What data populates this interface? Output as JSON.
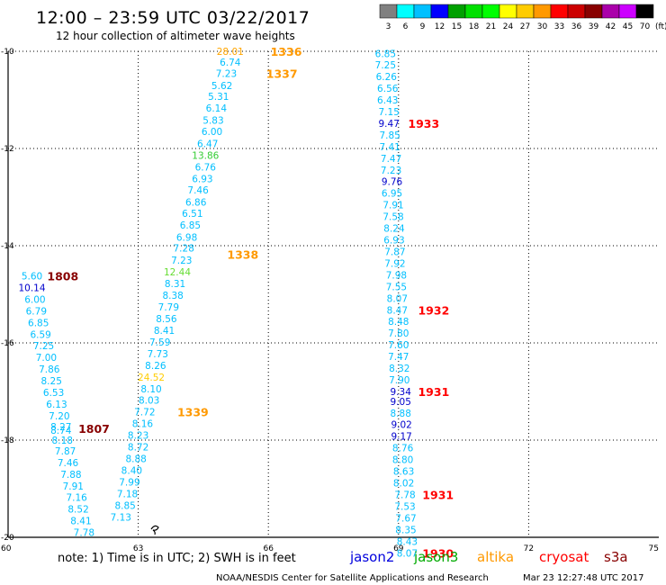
{
  "title": "12:00 – 23:59 UTC 03/22/2017",
  "subtitle": "12 hour collection of altimeter wave heights",
  "color_scale": {
    "labels": [
      "3",
      "6",
      "9",
      "12",
      "15",
      "18",
      "21",
      "24",
      "27",
      "30",
      "33",
      "36",
      "39",
      "42",
      "45",
      "70"
    ],
    "unit": "(ft)",
    "colors": [
      "#808080",
      "#00ffff",
      "#00c0ff",
      "#0000ff",
      "#00a000",
      "#00e000",
      "#00ff00",
      "#ffff00",
      "#ffcc00",
      "#ff9900",
      "#ff0000",
      "#cc0000",
      "#880000",
      "#aa00aa",
      "#cc00ff",
      "#000000"
    ]
  },
  "note": "note:  1) Time is in UTC;  2) SWH is in feet",
  "legend": [
    {
      "label": "jason2",
      "color": "#0000dd"
    },
    {
      "label": "jason3",
      "color": "#00aa00"
    },
    {
      "label": "altika",
      "color": "#ff9900"
    },
    {
      "label": "cryosat",
      "color": "#ff0000"
    },
    {
      "label": "s3a",
      "color": "#880000"
    }
  ],
  "footer_left": "NOAA/NESDIS Center for Satellite Applications and Research",
  "footer_right": "Mar 23 12:27:48 UTC 2017",
  "chart_data": {
    "type": "scatter",
    "xlim": [
      60,
      75
    ],
    "ylim": [
      -20,
      -10
    ],
    "x_ticks": [
      "60",
      "63",
      "66",
      "69",
      "72",
      "75"
    ],
    "y_ticks": [
      "-10",
      "-12",
      "-14",
      "-16",
      "-18",
      "-20"
    ],
    "x_grid": [
      63,
      66,
      69,
      72
    ],
    "y_grid": [
      -10,
      -12,
      -14,
      -16,
      -18
    ],
    "points": [
      {
        "x": 65.12,
        "y": -10.0,
        "label": "28.01",
        "color": "#ffa500"
      },
      {
        "x": 65.12,
        "y": -10.22,
        "label": "6.74",
        "color": "#00bfff"
      },
      {
        "x": 65.03,
        "y": -10.45,
        "label": "7.23",
        "color": "#00bfff"
      },
      {
        "x": 64.93,
        "y": -10.7,
        "label": "5.62",
        "color": "#00bfff"
      },
      {
        "x": 64.85,
        "y": -10.93,
        "label": "5.31",
        "color": "#00bfff"
      },
      {
        "x": 64.8,
        "y": -11.17,
        "label": "6.14",
        "color": "#00bfff"
      },
      {
        "x": 64.73,
        "y": -11.42,
        "label": "5.83",
        "color": "#00bfff"
      },
      {
        "x": 64.7,
        "y": -11.65,
        "label": "6.00",
        "color": "#00bfff"
      },
      {
        "x": 64.6,
        "y": -11.9,
        "label": "6.47",
        "color": "#00bfff"
      },
      {
        "x": 64.55,
        "y": -12.14,
        "label": "13.86",
        "color": "#33cc33"
      },
      {
        "x": 64.55,
        "y": -12.38,
        "label": "6.76",
        "color": "#00bfff"
      },
      {
        "x": 64.48,
        "y": -12.62,
        "label": "6.93",
        "color": "#00bfff"
      },
      {
        "x": 64.38,
        "y": -12.85,
        "label": "7.46",
        "color": "#00bfff"
      },
      {
        "x": 64.33,
        "y": -13.1,
        "label": "6.86",
        "color": "#00bfff"
      },
      {
        "x": 64.25,
        "y": -13.33,
        "label": "6.51",
        "color": "#00bfff"
      },
      {
        "x": 64.2,
        "y": -13.57,
        "label": "6.85",
        "color": "#00bfff"
      },
      {
        "x": 64.12,
        "y": -13.82,
        "label": "6.98",
        "color": "#00bfff"
      },
      {
        "x": 64.05,
        "y": -14.05,
        "label": "7.28",
        "color": "#00bfff"
      },
      {
        "x": 64.0,
        "y": -14.3,
        "label": "7.23",
        "color": "#00bfff"
      },
      {
        "x": 63.9,
        "y": -14.54,
        "label": "12.44",
        "color": "#66dd33"
      },
      {
        "x": 63.85,
        "y": -14.78,
        "label": "8.31",
        "color": "#00bfff"
      },
      {
        "x": 63.8,
        "y": -15.02,
        "label": "8.38",
        "color": "#00bfff"
      },
      {
        "x": 63.7,
        "y": -15.26,
        "label": "7.79",
        "color": "#00bfff"
      },
      {
        "x": 63.65,
        "y": -15.5,
        "label": "8.56",
        "color": "#00bfff"
      },
      {
        "x": 63.6,
        "y": -15.74,
        "label": "8.41",
        "color": "#00bfff"
      },
      {
        "x": 63.5,
        "y": -15.98,
        "label": "7.59",
        "color": "#00bfff"
      },
      {
        "x": 63.45,
        "y": -16.22,
        "label": "7.73",
        "color": "#00bfff"
      },
      {
        "x": 63.4,
        "y": -16.46,
        "label": "8.26",
        "color": "#00bfff"
      },
      {
        "x": 63.3,
        "y": -16.7,
        "label": "24.52",
        "color": "#ffcc00"
      },
      {
        "x": 63.3,
        "y": -16.94,
        "label": "8.10",
        "color": "#00bfff"
      },
      {
        "x": 63.25,
        "y": -17.18,
        "label": "8.03",
        "color": "#00bfff"
      },
      {
        "x": 63.15,
        "y": -17.42,
        "label": "7.72",
        "color": "#00bfff"
      },
      {
        "x": 63.1,
        "y": -17.66,
        "label": "8.16",
        "color": "#00bfff"
      },
      {
        "x": 63.0,
        "y": -17.9,
        "label": "8.23",
        "color": "#00bfff"
      },
      {
        "x": 63.0,
        "y": -18.14,
        "label": "8.72",
        "color": "#00bfff"
      },
      {
        "x": 62.95,
        "y": -18.38,
        "label": "8.88",
        "color": "#00bfff"
      },
      {
        "x": 62.85,
        "y": -18.62,
        "label": "8.40",
        "color": "#00bfff"
      },
      {
        "x": 62.8,
        "y": -18.86,
        "label": "7.99",
        "color": "#00bfff"
      },
      {
        "x": 62.75,
        "y": -19.1,
        "label": "7.18",
        "color": "#00bfff"
      },
      {
        "x": 62.7,
        "y": -19.34,
        "label": "8.85",
        "color": "#00bfff"
      },
      {
        "x": 62.6,
        "y": -19.58,
        "label": "7.13",
        "color": "#00bfff"
      },
      {
        "x": 60.55,
        "y": -14.62,
        "label": "5.60",
        "color": "#00bfff"
      },
      {
        "x": 60.55,
        "y": -14.86,
        "label": "10.14",
        "color": "#0000cc"
      },
      {
        "x": 60.62,
        "y": -15.1,
        "label": "6.00",
        "color": "#00bfff"
      },
      {
        "x": 60.65,
        "y": -15.34,
        "label": "6.79",
        "color": "#00bfff"
      },
      {
        "x": 60.7,
        "y": -15.58,
        "label": "6.85",
        "color": "#00bfff"
      },
      {
        "x": 60.75,
        "y": -15.82,
        "label": "6.59",
        "color": "#00bfff"
      },
      {
        "x": 60.82,
        "y": -16.06,
        "label": "7.25",
        "color": "#00bfff"
      },
      {
        "x": 60.88,
        "y": -16.3,
        "label": "7.00",
        "color": "#00bfff"
      },
      {
        "x": 60.95,
        "y": -16.54,
        "label": "7.86",
        "color": "#00bfff"
      },
      {
        "x": 61.0,
        "y": -16.78,
        "label": "8.25",
        "color": "#00bfff"
      },
      {
        "x": 61.05,
        "y": -17.02,
        "label": "6.53",
        "color": "#00bfff"
      },
      {
        "x": 61.12,
        "y": -17.26,
        "label": "6.13",
        "color": "#00bfff"
      },
      {
        "x": 61.18,
        "y": -17.5,
        "label": "7.20",
        "color": "#00bfff"
      },
      {
        "x": 61.22,
        "y": -17.72,
        "label": "8.27",
        "color": "#00bfff"
      },
      {
        "x": 61.22,
        "y": -17.8,
        "label": "8.74",
        "color": "#00bfff"
      },
      {
        "x": 61.25,
        "y": -18.0,
        "label": "8.18",
        "color": "#00bfff"
      },
      {
        "x": 61.32,
        "y": -18.22,
        "label": "7.87",
        "color": "#00bfff"
      },
      {
        "x": 61.38,
        "y": -18.46,
        "label": "7.46",
        "color": "#00bfff"
      },
      {
        "x": 61.45,
        "y": -18.7,
        "label": "7.88",
        "color": "#00bfff"
      },
      {
        "x": 61.5,
        "y": -18.94,
        "label": "7.91",
        "color": "#00bfff"
      },
      {
        "x": 61.58,
        "y": -19.18,
        "label": "7.16",
        "color": "#00bfff"
      },
      {
        "x": 61.62,
        "y": -19.42,
        "label": "8.52",
        "color": "#00bfff"
      },
      {
        "x": 61.68,
        "y": -19.66,
        "label": "8.41",
        "color": "#00bfff"
      },
      {
        "x": 61.75,
        "y": -19.9,
        "label": "7.78",
        "color": "#00bfff"
      },
      {
        "x": 68.7,
        "y": -10.05,
        "label": "6.85",
        "color": "#00bfff"
      },
      {
        "x": 68.7,
        "y": -10.28,
        "label": "7.25",
        "color": "#00bfff"
      },
      {
        "x": 68.72,
        "y": -10.52,
        "label": "6.26",
        "color": "#00bfff"
      },
      {
        "x": 68.75,
        "y": -10.76,
        "label": "6.56",
        "color": "#00bfff"
      },
      {
        "x": 68.75,
        "y": -11.0,
        "label": "6.43",
        "color": "#00bfff"
      },
      {
        "x": 68.78,
        "y": -11.24,
        "label": "7.15",
        "color": "#00bfff"
      },
      {
        "x": 68.78,
        "y": -11.48,
        "label": "9.47",
        "color": "#0000cc"
      },
      {
        "x": 68.8,
        "y": -11.72,
        "label": "7.85",
        "color": "#00bfff"
      },
      {
        "x": 68.8,
        "y": -11.96,
        "label": "7.41",
        "color": "#00bfff"
      },
      {
        "x": 68.83,
        "y": -12.2,
        "label": "7.47",
        "color": "#00bfff"
      },
      {
        "x": 68.83,
        "y": -12.44,
        "label": "7.23",
        "color": "#00bfff"
      },
      {
        "x": 68.85,
        "y": -12.68,
        "label": "9.76",
        "color": "#0000cc"
      },
      {
        "x": 68.85,
        "y": -12.92,
        "label": "6.95",
        "color": "#00bfff"
      },
      {
        "x": 68.88,
        "y": -13.16,
        "label": "7.91",
        "color": "#00bfff"
      },
      {
        "x": 68.88,
        "y": -13.4,
        "label": "7.58",
        "color": "#00bfff"
      },
      {
        "x": 68.9,
        "y": -13.64,
        "label": "8.24",
        "color": "#00bfff"
      },
      {
        "x": 68.9,
        "y": -13.88,
        "label": "6.93",
        "color": "#00bfff"
      },
      {
        "x": 68.92,
        "y": -14.12,
        "label": "7.87",
        "color": "#00bfff"
      },
      {
        "x": 68.92,
        "y": -14.36,
        "label": "7.92",
        "color": "#00bfff"
      },
      {
        "x": 68.95,
        "y": -14.6,
        "label": "7.98",
        "color": "#00bfff"
      },
      {
        "x": 68.95,
        "y": -14.84,
        "label": "7.55",
        "color": "#00bfff"
      },
      {
        "x": 68.97,
        "y": -15.08,
        "label": "8.07",
        "color": "#00bfff"
      },
      {
        "x": 68.97,
        "y": -15.32,
        "label": "8.47",
        "color": "#00bfff"
      },
      {
        "x": 69.0,
        "y": -15.56,
        "label": "8.48",
        "color": "#00bfff"
      },
      {
        "x": 69.0,
        "y": -15.8,
        "label": "7.80",
        "color": "#00bfff"
      },
      {
        "x": 69.0,
        "y": -16.04,
        "label": "7.60",
        "color": "#00bfff"
      },
      {
        "x": 69.0,
        "y": -16.28,
        "label": "7.47",
        "color": "#00bfff"
      },
      {
        "x": 69.02,
        "y": -16.52,
        "label": "8.32",
        "color": "#00bfff"
      },
      {
        "x": 69.02,
        "y": -16.76,
        "label": "7.90",
        "color": "#00bfff"
      },
      {
        "x": 69.05,
        "y": -17.0,
        "label": "9.34",
        "color": "#0000cc"
      },
      {
        "x": 69.05,
        "y": -17.2,
        "label": "9.05",
        "color": "#0000cc"
      },
      {
        "x": 69.05,
        "y": -17.44,
        "label": "8.88",
        "color": "#00bfff"
      },
      {
        "x": 69.07,
        "y": -17.68,
        "label": "9.02",
        "color": "#0000cc"
      },
      {
        "x": 69.07,
        "y": -17.92,
        "label": "9.17",
        "color": "#0000cc"
      },
      {
        "x": 69.1,
        "y": -18.16,
        "label": "8.76",
        "color": "#00bfff"
      },
      {
        "x": 69.1,
        "y": -18.4,
        "label": "8.80",
        "color": "#00bfff"
      },
      {
        "x": 69.12,
        "y": -18.64,
        "label": "8.63",
        "color": "#00bfff"
      },
      {
        "x": 69.12,
        "y": -18.88,
        "label": "8.02",
        "color": "#00bfff"
      },
      {
        "x": 69.15,
        "y": -19.12,
        "label": "7.78",
        "color": "#00bfff"
      },
      {
        "x": 69.15,
        "y": -19.36,
        "label": "7.53",
        "color": "#00bfff"
      },
      {
        "x": 69.17,
        "y": -19.6,
        "label": "7.67",
        "color": "#00bfff"
      },
      {
        "x": 69.17,
        "y": -19.84,
        "label": "8.35",
        "color": "#00bfff"
      },
      {
        "x": 69.2,
        "y": -20.08,
        "label": "8.43",
        "color": "#00bfff"
      },
      {
        "x": 69.2,
        "y": -20.32,
        "label": "8.07",
        "color": "#00bfff"
      }
    ],
    "time_labels": [
      {
        "x": 66.05,
        "y": -10.0,
        "label": "1336",
        "color": "#ff9900"
      },
      {
        "x": 65.95,
        "y": -10.45,
        "label": "1337",
        "color": "#ff9900"
      },
      {
        "x": 65.05,
        "y": -14.18,
        "label": "1338",
        "color": "#ff9900"
      },
      {
        "x": 63.9,
        "y": -17.42,
        "label": "1339",
        "color": "#ff9900"
      },
      {
        "x": 60.9,
        "y": -14.62,
        "label": "1808",
        "color": "#880000"
      },
      {
        "x": 61.62,
        "y": -17.76,
        "label": "1807",
        "color": "#880000"
      },
      {
        "x": 69.22,
        "y": -11.48,
        "label": "1933",
        "color": "#ff0000"
      },
      {
        "x": 69.45,
        "y": -15.32,
        "label": "1932",
        "color": "#ff0000"
      },
      {
        "x": 69.45,
        "y": -17.0,
        "label": "1931",
        "color": "#ff0000"
      },
      {
        "x": 69.55,
        "y": -19.12,
        "label": "1931",
        "color": "#ff0000"
      },
      {
        "x": 69.55,
        "y": -20.32,
        "label": "1930",
        "color": "#ff0000"
      }
    ]
  }
}
